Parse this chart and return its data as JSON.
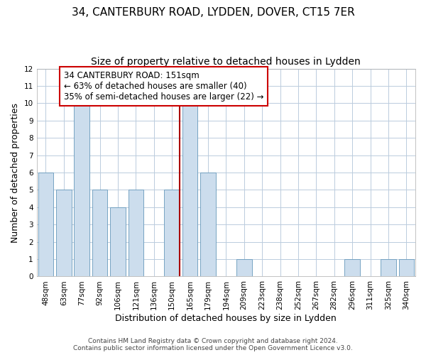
{
  "title": "34, CANTERBURY ROAD, LYDDEN, DOVER, CT15 7ER",
  "subtitle": "Size of property relative to detached houses in Lydden",
  "xlabel": "Distribution of detached houses by size in Lydden",
  "ylabel": "Number of detached properties",
  "categories": [
    "48sqm",
    "63sqm",
    "77sqm",
    "92sqm",
    "106sqm",
    "121sqm",
    "136sqm",
    "150sqm",
    "165sqm",
    "179sqm",
    "194sqm",
    "209sqm",
    "223sqm",
    "238sqm",
    "252sqm",
    "267sqm",
    "282sqm",
    "296sqm",
    "311sqm",
    "325sqm",
    "340sqm"
  ],
  "values": [
    6,
    5,
    10,
    5,
    4,
    5,
    0,
    5,
    10,
    6,
    0,
    1,
    0,
    0,
    0,
    0,
    0,
    1,
    0,
    1,
    1
  ],
  "bar_color": "#ccdded",
  "bar_edge_color": "#6699bb",
  "red_line_index": 7,
  "red_line_color": "#aa0000",
  "grid_color": "#bbccdd",
  "background_color": "#ffffff",
  "annotation_box_text": "34 CANTERBURY ROAD: 151sqm\n← 63% of detached houses are smaller (40)\n35% of semi-detached houses are larger (22) →",
  "annotation_box_edge_color": "#cc0000",
  "ylim": [
    0,
    12
  ],
  "yticks": [
    0,
    1,
    2,
    3,
    4,
    5,
    6,
    7,
    8,
    9,
    10,
    11,
    12
  ],
  "footer_line1": "Contains HM Land Registry data © Crown copyright and database right 2024.",
  "footer_line2": "Contains public sector information licensed under the Open Government Licence v3.0.",
  "title_fontsize": 11,
  "subtitle_fontsize": 10,
  "axis_label_fontsize": 9,
  "tick_fontsize": 7.5,
  "annotation_fontsize": 8.5,
  "footer_fontsize": 6.5
}
